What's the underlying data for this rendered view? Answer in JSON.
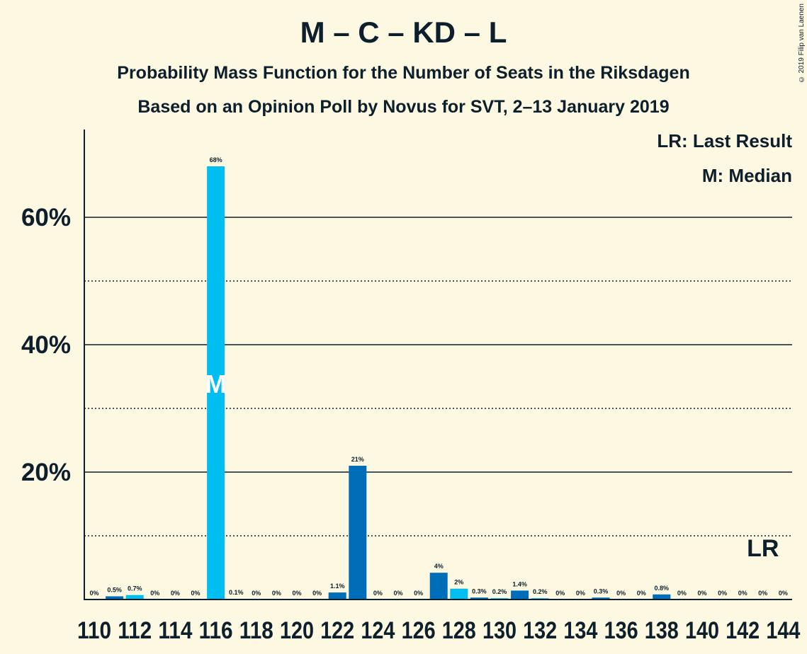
{
  "title": "M – C – KD – L",
  "subtitle": "Probability Mass Function for the Number of Seats in the Riksdagen",
  "subtitle2": "Based on an Opinion Poll by Novus for SVT, 2–13 January 2019",
  "copyright": "© 2019 Filip van Laenen",
  "legend": {
    "last_result": "LR: Last Result",
    "median": "M: Median"
  },
  "colors": {
    "background": "#fdf8e2",
    "bar_light": "#00bef0",
    "bar_dark": "#006db8",
    "text": "#0d1e2c"
  },
  "chart_data": {
    "type": "bar",
    "xlabel": "",
    "ylabel": "",
    "ylim": [
      0,
      0.74
    ],
    "y_ticks": [
      {
        "value": 0.2,
        "label": "20%",
        "style": "solid"
      },
      {
        "value": 0.4,
        "label": "40%",
        "style": "solid"
      },
      {
        "value": 0.6,
        "label": "60%",
        "style": "solid"
      }
    ],
    "y_minor_gridlines": [
      0.1,
      0.3,
      0.5
    ],
    "x_tick_labels": [
      "110",
      "112",
      "114",
      "116",
      "118",
      "120",
      "122",
      "124",
      "126",
      "128",
      "130",
      "132",
      "134",
      "136",
      "138",
      "140",
      "142",
      "144"
    ],
    "seats": [
      110,
      111,
      112,
      113,
      114,
      115,
      116,
      117,
      118,
      119,
      120,
      121,
      122,
      123,
      124,
      125,
      126,
      127,
      128,
      129,
      130,
      131,
      132,
      133,
      134,
      135,
      136,
      137,
      138,
      139,
      140,
      141,
      142,
      143,
      144
    ],
    "values": [
      0,
      0.005,
      0.007,
      0,
      0,
      0,
      0.68,
      0.001,
      0,
      0,
      0,
      0,
      0.011,
      0.21,
      0,
      0,
      0,
      0.042,
      0.017,
      0.003,
      0.002,
      0.014,
      0.002,
      0,
      0,
      0.003,
      0,
      0,
      0.008,
      0,
      0,
      0,
      0,
      0,
      0
    ],
    "value_labels": [
      "0%",
      "0.5%",
      "0.7%",
      "0%",
      "0%",
      "0%",
      "68%",
      "0.1%",
      "0%",
      "0%",
      "0%",
      "0%",
      "1.1%",
      "21%",
      "0%",
      "0%",
      "0%",
      "4%",
      "2%",
      "0.3%",
      "0.2%",
      "1.4%",
      "0.2%",
      "0%",
      "0%",
      "0.3%",
      "0%",
      "0%",
      "0.8%",
      "0%",
      "0%",
      "0%",
      "0%",
      "0%",
      "0%"
    ],
    "bar_shade": [
      "light",
      "dark",
      "light",
      "dark",
      "light",
      "dark",
      "light",
      "dark",
      "light",
      "dark",
      "light",
      "dark",
      "dark",
      "dark",
      "light",
      "dark",
      "light",
      "dark",
      "light",
      "dark",
      "light",
      "dark",
      "light",
      "dark",
      "light",
      "dark",
      "light",
      "dark",
      "dark",
      "dark",
      "light",
      "dark",
      "light",
      "dark",
      "light"
    ],
    "median_seat": 116,
    "median_marker": "M",
    "last_result_seat": 143,
    "last_result_marker": "LR"
  }
}
